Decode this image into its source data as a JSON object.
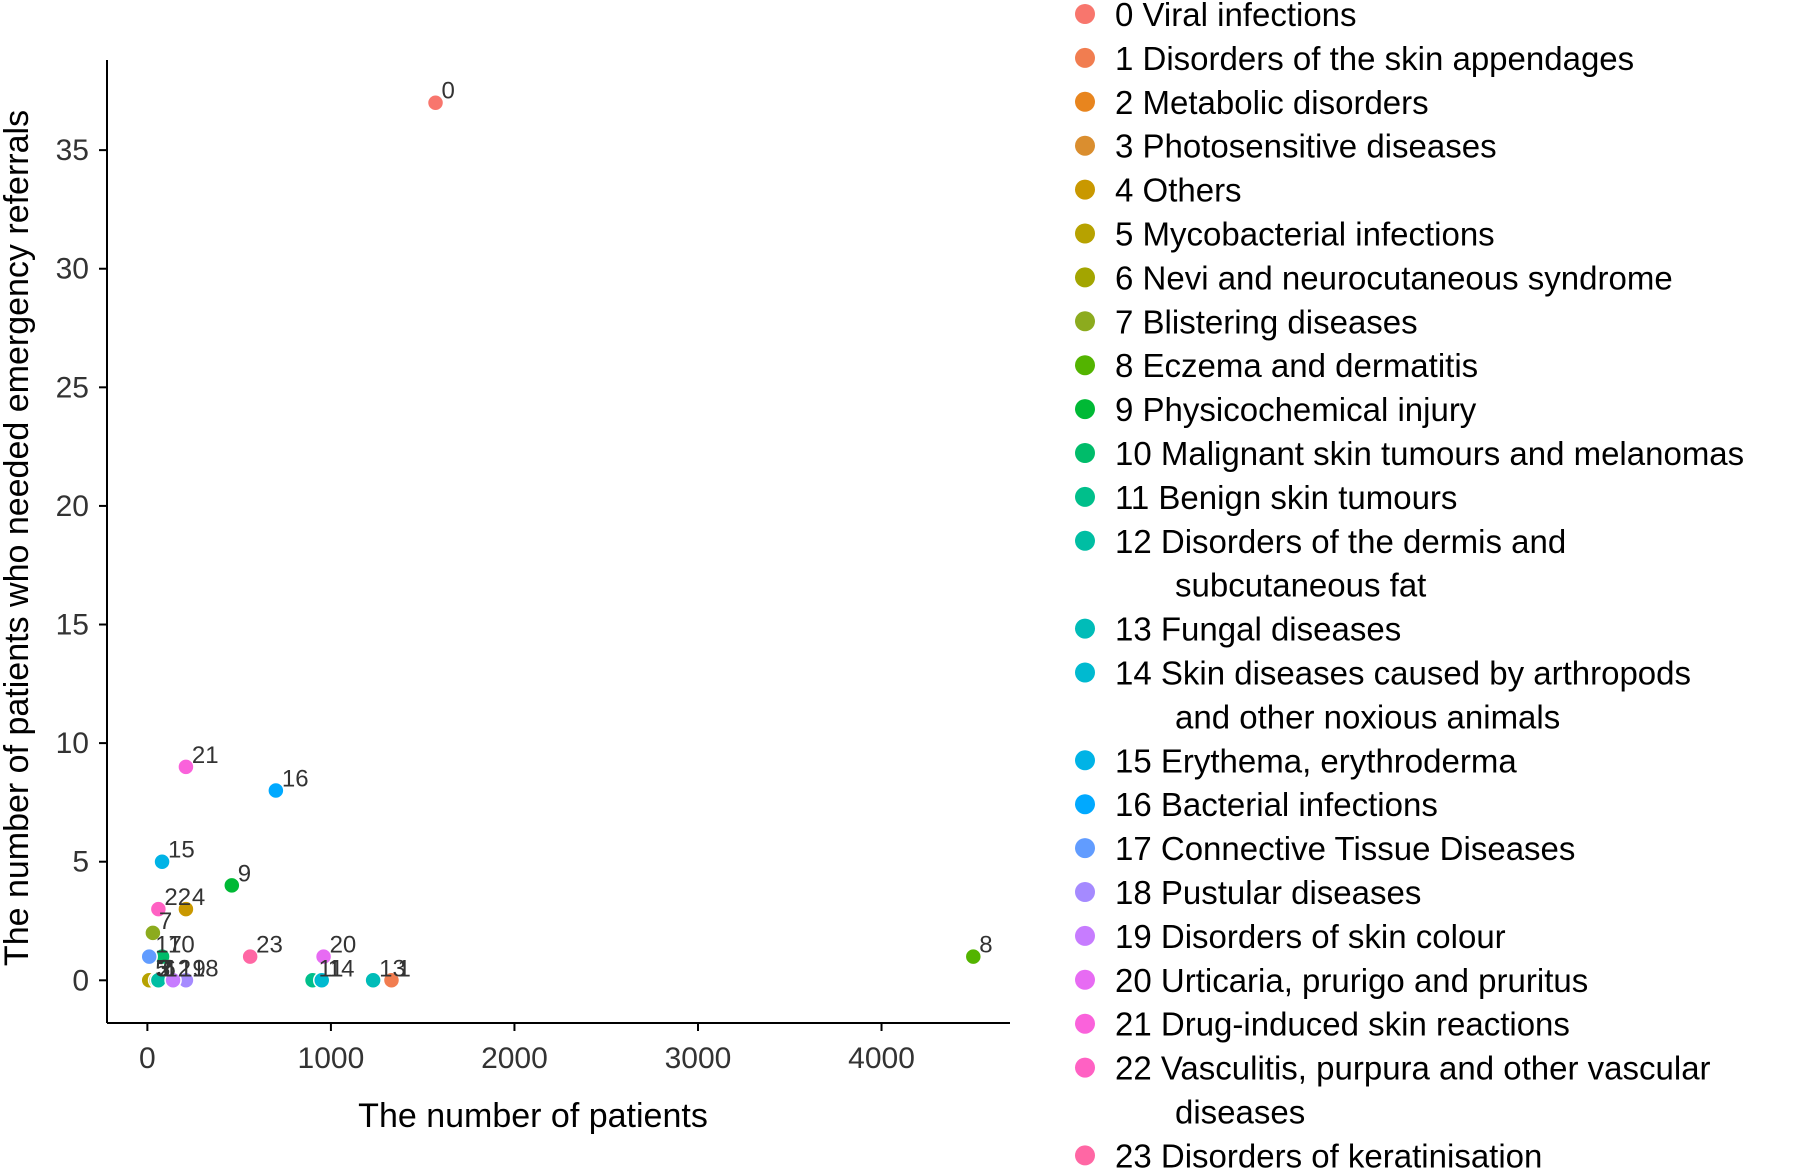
{
  "chart_data": {
    "type": "scatter",
    "title": "",
    "xlabel": "The number of patients",
    "ylabel": "The number of patients who needed emergency referrals",
    "xlim": [
      -220,
      4700
    ],
    "ylim": [
      -1.8,
      38.8
    ],
    "xticks": [
      0,
      1000,
      2000,
      3000,
      4000
    ],
    "yticks": [
      0,
      5,
      10,
      15,
      20,
      25,
      30,
      35
    ],
    "grid": false,
    "legend_position": "right",
    "points": [
      {
        "id": "0",
        "x": 1570,
        "y": 37,
        "color": "#F8766D"
      },
      {
        "id": "1",
        "x": 1330,
        "y": 0,
        "color": "#F17D50"
      },
      {
        "id": "2",
        "x": 30,
        "y": 0,
        "color": "#E8851E"
      },
      {
        "id": "3",
        "x": 20,
        "y": 0,
        "color": "#DA8E2F"
      },
      {
        "id": "4",
        "x": 210,
        "y": 3,
        "color": "#C99800"
      },
      {
        "id": "5",
        "x": 10,
        "y": 0,
        "color": "#B7A200"
      },
      {
        "id": "6",
        "x": 50,
        "y": 0,
        "color": "#A3A500"
      },
      {
        "id": "7",
        "x": 30,
        "y": 2,
        "color": "#8CAB1E"
      },
      {
        "id": "8",
        "x": 4500,
        "y": 1,
        "color": "#53B400"
      },
      {
        "id": "9",
        "x": 460,
        "y": 4,
        "color": "#00B935"
      },
      {
        "id": "10",
        "x": 80,
        "y": 1,
        "color": "#00BC6A"
      },
      {
        "id": "11",
        "x": 900,
        "y": 0,
        "color": "#00BF8B"
      },
      {
        "id": "12",
        "x": 60,
        "y": 0,
        "color": "#00BEA3"
      },
      {
        "id": "13",
        "x": 1230,
        "y": 0,
        "color": "#00BCB8"
      },
      {
        "id": "14",
        "x": 950,
        "y": 0,
        "color": "#00BAD0"
      },
      {
        "id": "15",
        "x": 80,
        "y": 5,
        "color": "#00B3E6"
      },
      {
        "id": "16",
        "x": 700,
        "y": 8,
        "color": "#00A9FF"
      },
      {
        "id": "17",
        "x": 10,
        "y": 1,
        "color": "#619CFF"
      },
      {
        "id": "18",
        "x": 210,
        "y": 0,
        "color": "#A58AFF"
      },
      {
        "id": "19",
        "x": 140,
        "y": 0,
        "color": "#C77CFF"
      },
      {
        "id": "20",
        "x": 960,
        "y": 1,
        "color": "#E76BF3"
      },
      {
        "id": "21",
        "x": 210,
        "y": 9,
        "color": "#FA62DB"
      },
      {
        "id": "22",
        "x": 60,
        "y": 3,
        "color": "#FF61C3"
      },
      {
        "id": "23",
        "x": 560,
        "y": 1,
        "color": "#FF67A4"
      }
    ],
    "legend": [
      {
        "label": [
          "0 Viral infections"
        ],
        "color": "#F8766D"
      },
      {
        "label": [
          "1 Disorders of the skin appendages"
        ],
        "color": "#F17D50"
      },
      {
        "label": [
          "2 Metabolic disorders"
        ],
        "color": "#E8851E"
      },
      {
        "label": [
          "3 Photosensitive diseases"
        ],
        "color": "#DA8E2F"
      },
      {
        "label": [
          "4 Others"
        ],
        "color": "#C99800"
      },
      {
        "label": [
          "5 Mycobacterial infections"
        ],
        "color": "#B7A200"
      },
      {
        "label": [
          "6 Nevi and neurocutaneous syndrome"
        ],
        "color": "#A3A500"
      },
      {
        "label": [
          "7 Blistering diseases"
        ],
        "color": "#8CAB1E"
      },
      {
        "label": [
          "8 Eczema and dermatitis"
        ],
        "color": "#53B400"
      },
      {
        "label": [
          "9 Physicochemical injury"
        ],
        "color": "#00B935"
      },
      {
        "label": [
          "10 Malignant skin tumours and melanomas"
        ],
        "color": "#00BC6A"
      },
      {
        "label": [
          "11 Benign skin tumours"
        ],
        "color": "#00BF8B"
      },
      {
        "label": [
          "12 Disorders of the dermis and",
          "subcutaneous fat"
        ],
        "color": "#00BEA3"
      },
      {
        "label": [
          "13 Fungal diseases"
        ],
        "color": "#00BCB8"
      },
      {
        "label": [
          "14 Skin diseases caused by arthropods",
          "and other noxious animals"
        ],
        "color": "#00BAD0"
      },
      {
        "label": [
          "15 Erythema, erythroderma"
        ],
        "color": "#00B3E6"
      },
      {
        "label": [
          "16 Bacterial infections"
        ],
        "color": "#00A9FF"
      },
      {
        "label": [
          "17 Connective Tissue Diseases"
        ],
        "color": "#619CFF"
      },
      {
        "label": [
          "18 Pustular diseases"
        ],
        "color": "#A58AFF"
      },
      {
        "label": [
          "19 Disorders of skin colour"
        ],
        "color": "#C77CFF"
      },
      {
        "label": [
          "20 Urticaria, prurigo and pruritus"
        ],
        "color": "#E76BF3"
      },
      {
        "label": [
          "21 Drug-induced skin reactions"
        ],
        "color": "#FA62DB"
      },
      {
        "label": [
          "22 Vasculitis, purpura and other vascular",
          "diseases"
        ],
        "color": "#FF61C3"
      },
      {
        "label": [
          "23 Disorders of keratinisation"
        ],
        "color": "#FF67A4"
      }
    ]
  }
}
